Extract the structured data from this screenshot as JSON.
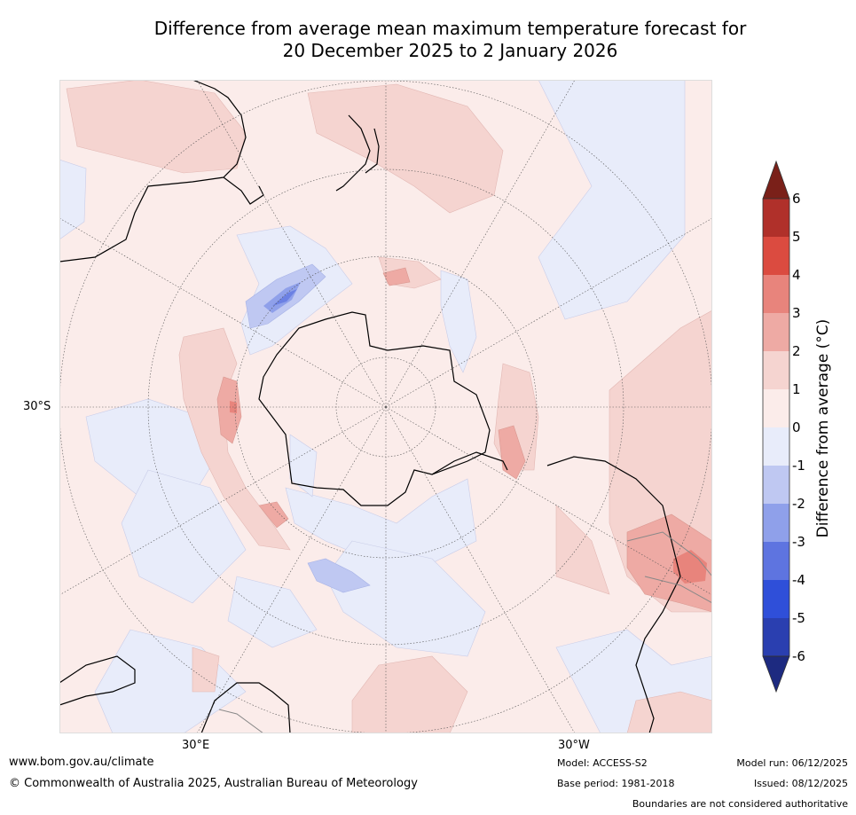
{
  "title": {
    "line1": "Difference from average mean maximum temperature forecast for",
    "line2": "20 December 2025 to 2 January 2026"
  },
  "map": {
    "projection": "South polar stereographic",
    "lat_label": "30°S",
    "lon_label_east": "30°E",
    "lon_label_west": "30°W"
  },
  "colorbar": {
    "label": "Difference from average (°C)",
    "ticks": [
      "6",
      "5",
      "4",
      "3",
      "2",
      "1",
      "0",
      "-1",
      "-2",
      "-3",
      "-4",
      "-5",
      "-6"
    ],
    "colors": {
      "over": "#7a2019",
      "5_to_6": "#b0302a",
      "4_to_5": "#db4b40",
      "3_to_4": "#e8847c",
      "2_to_3": "#eeaaa4",
      "1_to_2": "#f5d4d0",
      "0_to_1": "#fbecea",
      "m1_to_0": "#e8ecfa",
      "m2_to_m1": "#bfc8f2",
      "m3_to_m2": "#8fa0ea",
      "m4_to_m3": "#5e74e0",
      "m5_to_m4": "#2f4fd9",
      "m6_to_m5": "#2a3fb0",
      "under": "#1d2a80"
    }
  },
  "footer": {
    "website": "www.bom.gov.au/climate",
    "copyright": "© Commonwealth of Australia 2025, Australian Bureau of Meteorology",
    "model": "Model: ACCESS-S2",
    "base_period": "Base period: 1981-2018",
    "model_run": "Model run: 06/12/2025",
    "issued": "Issued: 08/12/2025",
    "disclaimer": "Boundaries are not considered authoritative"
  }
}
